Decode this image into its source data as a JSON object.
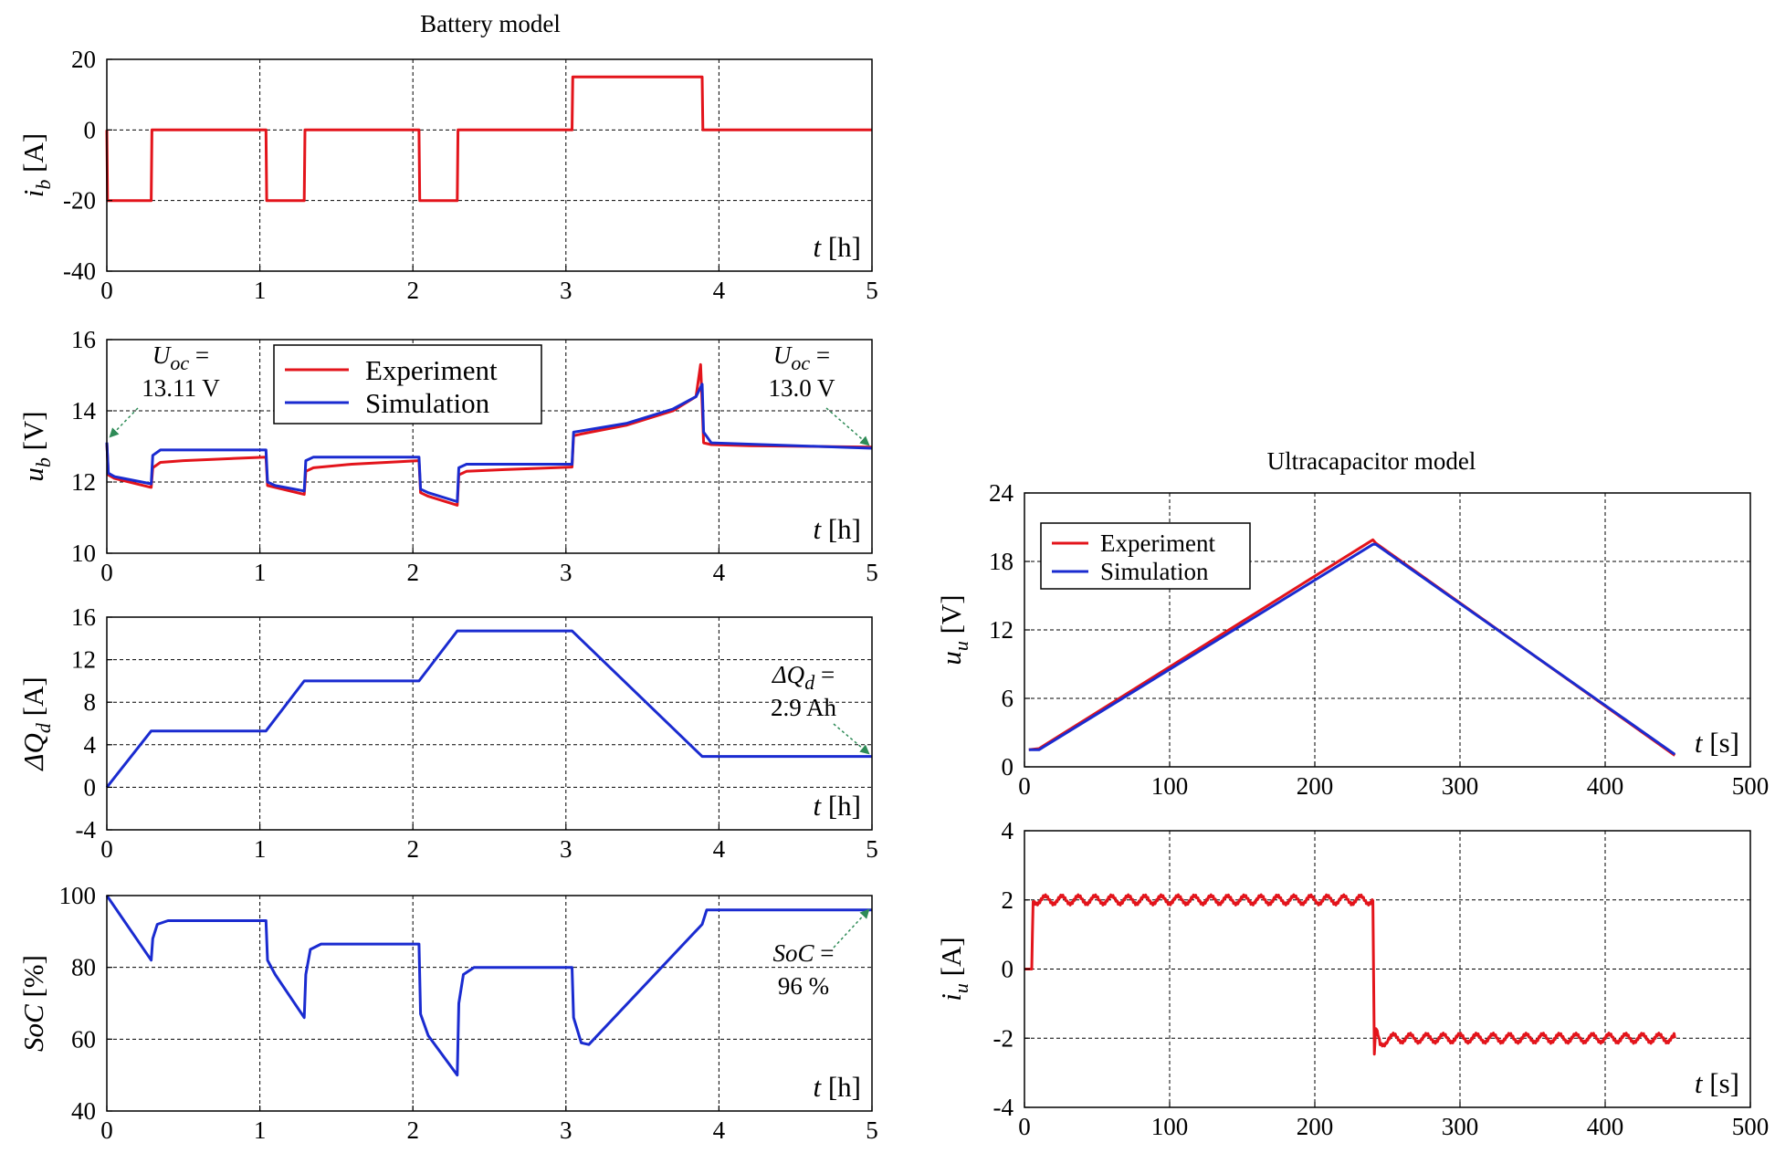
{
  "colors": {
    "experiment": "#e3141b",
    "simulation": "#1a2bd0",
    "annotation_arrow": "#2e8b57"
  },
  "figure": {
    "left_title": "Battery model",
    "right_title": "Ultracapacitor model"
  },
  "chart_data": [
    {
      "id": "ib",
      "type": "line",
      "ylabel": "i",
      "ylabel_sub": "b",
      "ylabel_unit": "[A]",
      "xlabel": "t",
      "xlabel_unit": "[h]",
      "xlim": [
        0,
        5
      ],
      "ylim": [
        -40,
        20
      ],
      "xticks": [
        0,
        1,
        2,
        3,
        4,
        5
      ],
      "yticks": [
        -40,
        -20,
        0,
        20
      ],
      "grid": true,
      "series": [
        {
          "name": "Experiment",
          "color": "#e3141b",
          "x": [
            0,
            0.005,
            0.29,
            0.295,
            1.04,
            1.045,
            1.29,
            1.295,
            2.04,
            2.045,
            2.29,
            2.295,
            3.04,
            3.045,
            3.89,
            3.895,
            5
          ],
          "y": [
            0,
            -20,
            -20,
            0,
            0,
            -20,
            -20,
            0,
            0,
            -20,
            -20,
            0,
            0,
            15,
            15,
            0,
            0
          ]
        }
      ]
    },
    {
      "id": "ub",
      "type": "line",
      "ylabel": "u",
      "ylabel_sub": "b",
      "ylabel_unit": "[V]",
      "xlabel": "t",
      "xlabel_unit": "[h]",
      "xlim": [
        0,
        5
      ],
      "ylim": [
        10,
        16
      ],
      "xticks": [
        0,
        1,
        2,
        3,
        4,
        5
      ],
      "yticks": [
        10,
        12,
        14,
        16
      ],
      "grid": true,
      "legend": {
        "placement": "top-center",
        "entries": [
          "Experiment",
          "Simulation"
        ]
      },
      "annotations": [
        {
          "line1_main": "U",
          "line1_sub": "oc",
          "line1_tail": " =",
          "line2": "13.11 V",
          "x": 0,
          "y": 13.11
        },
        {
          "line1_main": "U",
          "line1_sub": "oc",
          "line1_tail": " =",
          "line2": "13.0 V",
          "x": 5,
          "y": 13.0
        }
      ],
      "series": [
        {
          "name": "Experiment",
          "color": "#e3141b",
          "x": [
            0,
            0.01,
            0.05,
            0.29,
            0.3,
            0.35,
            0.5,
            1.04,
            1.05,
            1.1,
            1.29,
            1.3,
            1.35,
            1.6,
            2.04,
            2.05,
            2.1,
            2.29,
            2.3,
            2.35,
            2.6,
            3.04,
            3.05,
            3.1,
            3.4,
            3.7,
            3.85,
            3.88,
            3.89,
            3.9,
            3.95,
            4.2,
            5
          ],
          "y": [
            13.1,
            12.2,
            12.1,
            11.85,
            12.4,
            12.55,
            12.6,
            12.7,
            11.9,
            11.85,
            11.65,
            12.3,
            12.4,
            12.5,
            12.6,
            11.7,
            11.6,
            11.35,
            12.2,
            12.3,
            12.35,
            12.42,
            13.3,
            13.35,
            13.6,
            14.0,
            14.4,
            15.3,
            14.2,
            13.1,
            13.05,
            13.02,
            12.98
          ]
        },
        {
          "name": "Simulation",
          "color": "#1a2bd0",
          "x": [
            0,
            0.01,
            0.05,
            0.29,
            0.3,
            0.35,
            1.04,
            1.05,
            1.1,
            1.29,
            1.3,
            1.35,
            2.04,
            2.05,
            2.1,
            2.29,
            2.3,
            2.35,
            3.04,
            3.05,
            3.4,
            3.7,
            3.85,
            3.89,
            3.9,
            3.95,
            5
          ],
          "y": [
            13.11,
            12.25,
            12.15,
            11.95,
            12.75,
            12.9,
            12.9,
            12.0,
            11.9,
            11.75,
            12.6,
            12.7,
            12.7,
            11.8,
            11.7,
            11.45,
            12.4,
            12.5,
            12.5,
            13.4,
            13.65,
            14.05,
            14.4,
            14.75,
            13.4,
            13.1,
            12.95
          ]
        }
      ]
    },
    {
      "id": "dQd",
      "type": "line",
      "ylabel": "ΔQ",
      "ylabel_sub": "d",
      "ylabel_unit": "[A]",
      "xlabel": "t",
      "xlabel_unit": "[h]",
      "xlim": [
        0,
        5
      ],
      "ylim": [
        -4,
        16
      ],
      "xticks": [
        0,
        1,
        2,
        3,
        4,
        5
      ],
      "yticks": [
        -4,
        0,
        4,
        8,
        12,
        16
      ],
      "grid": true,
      "annotations": [
        {
          "line1_main": "ΔQ",
          "line1_sub": "d",
          "line1_tail": " =",
          "line2": "2.9 Ah",
          "x": 5,
          "y": 2.9
        }
      ],
      "series": [
        {
          "name": "Simulation",
          "color": "#1a2bd0",
          "x": [
            0,
            0.29,
            1.04,
            1.29,
            2.04,
            2.29,
            3.04,
            3.89,
            5
          ],
          "y": [
            0,
            5.3,
            5.3,
            10.0,
            10.0,
            14.7,
            14.7,
            2.9,
            2.9
          ]
        }
      ]
    },
    {
      "id": "soc",
      "type": "line",
      "ylabel": "SoC",
      "ylabel_sub": "",
      "ylabel_unit": "[%]",
      "xlabel": "t",
      "xlabel_unit": "[h]",
      "xlim": [
        0,
        5
      ],
      "ylim": [
        40,
        100
      ],
      "xticks": [
        0,
        1,
        2,
        3,
        4,
        5
      ],
      "yticks": [
        40,
        60,
        80,
        100
      ],
      "grid": true,
      "annotations": [
        {
          "line1_main": "SoC",
          "line1_sub": "",
          "line1_tail": " =",
          "line2": "96 %",
          "x": 5,
          "y": 96
        }
      ],
      "series": [
        {
          "name": "Simulation",
          "color": "#1a2bd0",
          "x": [
            0,
            0.29,
            0.3,
            0.33,
            0.4,
            1.04,
            1.05,
            1.1,
            1.29,
            1.3,
            1.33,
            1.4,
            2.04,
            2.05,
            2.1,
            2.29,
            2.3,
            2.33,
            2.4,
            3.04,
            3.05,
            3.1,
            3.15,
            3.89,
            3.92,
            3.95,
            5
          ],
          "y": [
            100,
            82,
            88,
            92,
            93,
            93,
            82,
            78,
            66,
            78,
            85,
            86.5,
            86.5,
            67,
            61,
            50,
            70,
            78,
            80,
            80,
            66,
            59,
            58.5,
            92,
            96,
            96,
            96
          ]
        }
      ]
    },
    {
      "id": "uu",
      "type": "line",
      "title": "Ultracapacitor model",
      "ylabel": "u",
      "ylabel_sub": "u",
      "ylabel_unit": "[V]",
      "xlabel": "t",
      "xlabel_unit": "[s]",
      "xlim": [
        0,
        500
      ],
      "ylim": [
        0,
        24
      ],
      "xticks": [
        0,
        100,
        200,
        300,
        400,
        500
      ],
      "yticks": [
        0,
        6,
        12,
        18,
        24
      ],
      "grid": true,
      "legend": {
        "placement": "top-left",
        "entries": [
          "Experiment",
          "Simulation"
        ]
      },
      "series": [
        {
          "name": "Experiment",
          "color": "#e3141b",
          "x": [
            3,
            10,
            240,
            242,
            448
          ],
          "y": [
            1.5,
            1.6,
            19.9,
            19.6,
            1.0
          ]
        },
        {
          "name": "Simulation",
          "color": "#1a2bd0",
          "x": [
            3,
            10,
            240,
            242,
            448
          ],
          "y": [
            1.5,
            1.5,
            19.5,
            19.5,
            1.1
          ]
        }
      ]
    },
    {
      "id": "iu",
      "type": "line",
      "ylabel": "i",
      "ylabel_sub": "u",
      "ylabel_unit": "[A]",
      "xlabel": "t",
      "xlabel_unit": "[s]",
      "xlim": [
        0,
        500
      ],
      "ylim": [
        -4,
        4
      ],
      "xticks": [
        0,
        100,
        200,
        300,
        400,
        500
      ],
      "yticks": [
        -4,
        -2,
        0,
        2,
        4
      ],
      "grid": true,
      "series": [
        {
          "name": "Experiment",
          "color": "#e3141b",
          "x": [
            0,
            5,
            6,
            240,
            241,
            242,
            245,
            250,
            448
          ],
          "y": [
            0,
            0,
            2.0,
            2.0,
            -2.5,
            -1.8,
            -2.2,
            -2.0,
            -2.0
          ],
          "ripple": 0.12
        }
      ]
    }
  ]
}
